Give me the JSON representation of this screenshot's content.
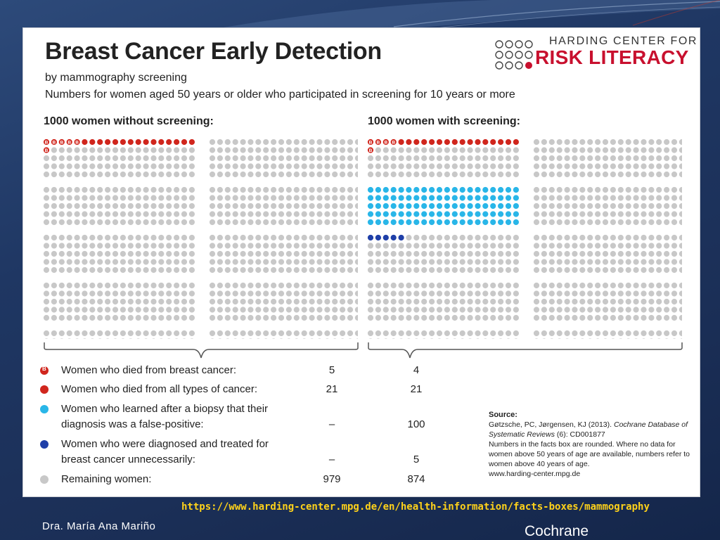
{
  "slide": {
    "title": "Breast Cancer Early Detection",
    "subtitle1": "by mammography screening",
    "subtitle2": "Numbers for women aged 50 years or older who participated in screening for 10 years or more",
    "logo": {
      "top": "HARDING CENTER FOR",
      "bottom": "RISK LITERACY"
    },
    "groups": [
      {
        "title": "1000 women without screening:",
        "breast_cancer_deaths": 5,
        "all_cancer_deaths": 21,
        "false_positive": 0,
        "overdiagnosed": 0
      },
      {
        "title": "1000 women with screening:",
        "breast_cancer_deaths": 4,
        "all_cancer_deaths": 21,
        "false_positive": 100,
        "overdiagnosed": 5
      }
    ],
    "legend": [
      {
        "label": "Women who died from breast cancer:",
        "v1": "5",
        "v2": "4",
        "color": "#d0261d",
        "marked": true
      },
      {
        "label": "Women who died from all types of cancer:",
        "v1": "21",
        "v2": "21",
        "color": "#d0261d",
        "marked": false
      },
      {
        "label": "Women who learned after a biopsy that their diagnosis was a false-positive:",
        "v1": "–",
        "v2": "100",
        "color": "#29b6e8",
        "marked": false
      },
      {
        "label": "Women who were diagnosed and treated for breast cancer unnecessarily:",
        "v1": "–",
        "v2": "5",
        "color": "#1f3fa8",
        "marked": false
      },
      {
        "label": "Remaining women:",
        "v1": "979",
        "v2": "874",
        "color": "#c8c8c8",
        "marked": false
      }
    ],
    "source": {
      "heading": "Source:",
      "line1": "Gøtzsche, PC, Jørgensen, KJ (2013).",
      "journal": "Cochrane Database of Systematic Reviews",
      "issue": "(6): CD001877",
      "note": "Numbers in the facts box are rounded. Where no data for women above 50 years of age are available, numbers refer to women above 40 years of age.",
      "website": "www.harding-center.mpg.de"
    },
    "colors": {
      "red": "#d0261d",
      "light_blue": "#29b6e8",
      "dark_blue": "#1f3fa8",
      "gray": "#c8c8c8"
    }
  },
  "footer": {
    "url": "https://www.harding-center.mpg.de/en/health-information/facts-boxes/mammography",
    "author": "Dra. María Ana Mariño",
    "brand": "Cochrane"
  }
}
